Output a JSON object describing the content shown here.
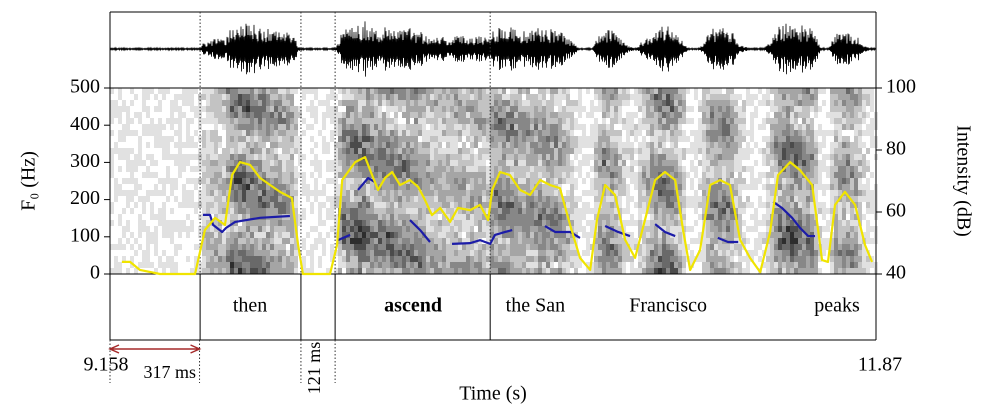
{
  "chart_data": {
    "type": "line",
    "xlabel": "Time (s)",
    "ylabel": "F₀ (Hz)",
    "y2label": "Intensity (dB)",
    "xlim": [
      9.158,
      11.87
    ],
    "xticks": [
      9.158,
      11.87
    ],
    "ylim": [
      0,
      500
    ],
    "yticks": [
      0,
      100,
      200,
      300,
      400,
      500
    ],
    "y2lim": [
      40,
      100
    ],
    "y2ticks": [
      40,
      60,
      80,
      100
    ],
    "series": [
      {
        "color": "#1c1ca8",
        "x": [
          9.487,
          9.512,
          9.523,
          9.555,
          9.569,
          9.601,
          9.689,
          9.795,
          null,
          9.965,
          10.008,
          null,
          10.036,
          10.072,
          10.096,
          null,
          10.22,
          10.256,
          10.291,
          null,
          10.369,
          10.433,
          10.468,
          10.504,
          10.521,
          10.557,
          10.582,
          null,
          10.698,
          10.734,
          10.787,
          10.822,
          null,
          10.911,
          10.957,
          10.999,
          null,
          11.088,
          11.123,
          11.159,
          null,
          11.31,
          11.346,
          11.382,
          null,
          11.506,
          11.538,
          11.573,
          11.601,
          11.63,
          11.654
        ],
        "values": [
          159,
          159,
          132,
          113,
          124,
          140,
          151,
          156,
          null,
          91,
          105,
          null,
          226,
          258,
          247,
          null,
          145,
          118,
          86,
          null,
          81,
          83,
          91,
          81,
          105,
          113,
          118,
          null,
          129,
          113,
          113,
          97,
          null,
          129,
          113,
          102,
          null,
          134,
          113,
          102,
          null,
          97,
          86,
          86,
          null,
          194,
          177,
          151,
          124,
          102,
          102
        ]
      },
      {
        "color": "#f0e400",
        "axis": "y2",
        "x": [
          9.2,
          9.229,
          9.264,
          9.335,
          9.459,
          9.494,
          9.53,
          9.565,
          9.59,
          9.618,
          9.654,
          9.689,
          9.725,
          9.76,
          9.802,
          9.824,
          9.841,
          9.937,
          9.962,
          9.98,
          10.026,
          10.061,
          10.086,
          10.107,
          10.132,
          10.157,
          10.185,
          10.22,
          10.249,
          10.273,
          10.298,
          10.327,
          10.362,
          10.39,
          10.433,
          10.468,
          10.497,
          10.511,
          10.539,
          10.574,
          10.61,
          10.645,
          10.681,
          10.716,
          10.751,
          10.787,
          10.822,
          10.858,
          10.882,
          10.911,
          10.946,
          10.982,
          11.017,
          11.052,
          11.088,
          11.123,
          11.159,
          11.187,
          11.212,
          11.247,
          11.283,
          11.318,
          11.353,
          11.389,
          11.424,
          11.46,
          11.495,
          11.523,
          11.566,
          11.601,
          11.644,
          11.679,
          11.7,
          11.725,
          11.76,
          11.796,
          11.831,
          11.856
        ],
        "values": [
          43.9,
          43.9,
          41.3,
          40,
          40,
          54.2,
          58.1,
          55.8,
          71.9,
          76.1,
          75.2,
          71.0,
          68.7,
          66.5,
          64.5,
          49.4,
          40,
          40,
          49.4,
          70.3,
          76.1,
          77.7,
          71.9,
          67.1,
          71.0,
          72.9,
          68.7,
          70.3,
          68.1,
          63.9,
          59.0,
          61.3,
          56.8,
          61.3,
          60.6,
          62.3,
          57.4,
          67.1,
          72.9,
          71.9,
          67.1,
          65.5,
          70.3,
          68.7,
          67.7,
          55.8,
          45.2,
          41.3,
          57.4,
          68.7,
          65.5,
          51.0,
          45.2,
          57.4,
          70.3,
          72.9,
          70.3,
          54.2,
          41.3,
          47.7,
          68.7,
          70.3,
          68.7,
          51.0,
          45.2,
          40.6,
          53.5,
          71.9,
          76.1,
          73.5,
          68.7,
          44.5,
          43.9,
          62.3,
          66.5,
          62.3,
          49.4,
          43.9
        ]
      }
    ],
    "tier": {
      "boundaries": [
        9.477,
        9.834,
        9.955,
        10.504
      ],
      "words": [
        {
          "label": "then",
          "x": 9.654
        },
        {
          "label": "ascend",
          "x": 10.231,
          "bold": true
        },
        {
          "label": "the San",
          "x": 10.664
        },
        {
          "label": "Francisco",
          "x": 11.134
        },
        {
          "label": "peaks",
          "x": 11.732
        }
      ]
    },
    "annotations": [
      {
        "text": "317 ms",
        "x": [
          9.158,
          9.475
        ],
        "color": "#a52a2a"
      },
      {
        "text": "121 ms",
        "x": [
          9.834,
          9.955
        ],
        "color": "#a52a2a"
      }
    ]
  }
}
